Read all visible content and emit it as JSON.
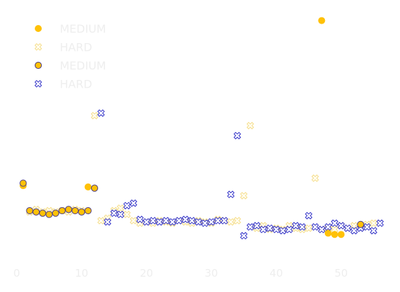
{
  "chart_data": {
    "type": "scatter",
    "title": "",
    "xlabel": "",
    "ylabel": "",
    "xlim": [
      -1.5,
      58
    ],
    "ylim": [
      -2,
      100
    ],
    "xticks": [
      0,
      10,
      20,
      30,
      40,
      50
    ],
    "xtick_labels": [
      "0",
      "10",
      "20",
      "30",
      "40",
      "50"
    ],
    "grid": false,
    "legend_position": "top-left",
    "colors": {
      "gold": "#ffc107",
      "gold_light": "#f5dd8a",
      "navy_edge": "#4b3c86",
      "blue": "#3434c8"
    },
    "series": [
      {
        "name": "MEDIUM",
        "style": "filled-dot",
        "x": [
          1,
          11,
          47,
          48,
          49,
          50
        ],
        "y": [
          28,
          27.5,
          94,
          9,
          8.5,
          8.5
        ]
      },
      {
        "name": "HARD",
        "style": "light-x",
        "x": [
          2,
          3,
          4,
          5,
          6,
          7,
          8,
          9,
          10,
          12,
          13,
          14,
          15,
          16,
          17,
          18,
          19,
          20,
          21,
          22,
          23,
          24,
          25,
          26,
          27,
          28,
          29,
          30,
          31,
          32,
          33,
          34,
          35,
          36,
          37,
          38,
          39,
          40,
          41,
          42,
          43,
          44,
          45,
          46,
          47,
          48,
          49,
          50,
          51,
          52,
          53,
          54,
          55
        ],
        "y": [
          17.5,
          18.5,
          17.5,
          18,
          17.5,
          18,
          17.5,
          18.5,
          18,
          56,
          14,
          15,
          18,
          19,
          16.5,
          14,
          13,
          13.5,
          13,
          14,
          13.5,
          13,
          14,
          13.5,
          13,
          14,
          13.5,
          13,
          14.5,
          14,
          13.5,
          14,
          24,
          52,
          11,
          12,
          10.5,
          11,
          10.5,
          12,
          11,
          10.5,
          11,
          31,
          10.5,
          11,
          10.5,
          12,
          11,
          12,
          11,
          12.5,
          13
        ]
      },
      {
        "name": "MEDIUM",
        "style": "outlined-dot",
        "x": [
          1,
          2,
          3,
          4,
          5,
          6,
          7,
          8,
          9,
          10,
          11,
          12,
          53
        ],
        "y": [
          29,
          18,
          17.5,
          17,
          16.5,
          17,
          18,
          18.5,
          18,
          17.5,
          18,
          27,
          12.5
        ]
      },
      {
        "name": "HARD",
        "style": "blue-x",
        "x": [
          13,
          14,
          15,
          16,
          17,
          18,
          19,
          20,
          21,
          22,
          23,
          24,
          25,
          26,
          27,
          28,
          29,
          30,
          31,
          32,
          33,
          34,
          35,
          36,
          37,
          38,
          39,
          40,
          41,
          42,
          43,
          44,
          45,
          46,
          47,
          48,
          49,
          50,
          51,
          52,
          53,
          54,
          55,
          56
        ],
        "y": [
          57,
          13.5,
          17,
          16.5,
          20,
          21,
          14.5,
          13.5,
          14,
          13.5,
          14,
          13.5,
          14,
          14.5,
          14,
          13.5,
          13,
          13.5,
          14,
          14,
          24.5,
          48,
          8,
          11.5,
          12,
          10.5,
          11,
          10.5,
          10,
          10.5,
          12,
          11.5,
          16,
          11.5,
          10.5,
          11.5,
          13,
          12,
          11,
          10,
          11,
          11.5,
          10,
          13
        ]
      }
    ]
  }
}
